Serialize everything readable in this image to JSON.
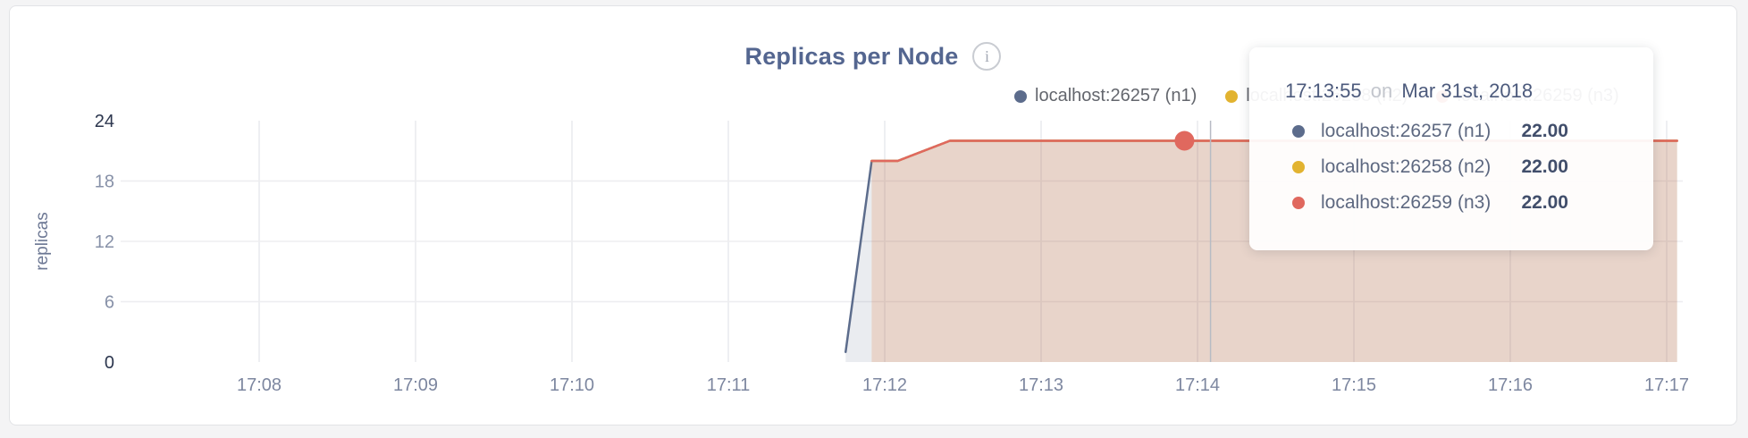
{
  "header": {
    "title": "Replicas per Node",
    "info_glyph": "i"
  },
  "legend": {
    "position": "top-right",
    "items": [
      {
        "label": "localhost:26257 (n1)",
        "color": "#5c6c8c"
      },
      {
        "label": "localhost:26258 (n2)",
        "color": "#e2b330"
      },
      {
        "label": "localhost:26259 (n3)",
        "color": "#e0685e"
      }
    ]
  },
  "chart_data": {
    "type": "area",
    "title": "Replicas per Node",
    "xlabel": "",
    "ylabel": "replicas",
    "ylim": [
      0,
      24
    ],
    "y_ticks": [
      0,
      6,
      12,
      18,
      24
    ],
    "x_ticks": [
      "17:08",
      "17:09",
      "17:10",
      "17:11",
      "17:12",
      "17:13",
      "17:14",
      "17:15",
      "17:16",
      "17:17"
    ],
    "grid": true,
    "legend_position": "top-right",
    "series": [
      {
        "name": "localhost:26257 (n1)",
        "color": "#5c6c8c",
        "fill": "rgba(92,108,140,0.13)",
        "points": [
          [
            "17:11:45",
            1
          ],
          [
            "17:11:55",
            20
          ],
          [
            "17:12:05",
            20
          ],
          [
            "17:12:25",
            22
          ],
          [
            "17:17:04",
            22
          ]
        ]
      },
      {
        "name": "localhost:26258 (n2)",
        "color": "#e2b330",
        "fill": "rgba(226,179,48,0.10)",
        "points": [
          [
            "17:11:55",
            20
          ],
          [
            "17:12:05",
            20
          ],
          [
            "17:12:25",
            22
          ],
          [
            "17:17:04",
            22
          ]
        ]
      },
      {
        "name": "localhost:26259 (n3)",
        "color": "#e0685e",
        "fill": "rgba(224,104,94,0.14)",
        "points": [
          [
            "17:11:55",
            20
          ],
          [
            "17:12:05",
            20
          ],
          [
            "17:12:25",
            22
          ],
          [
            "17:17:04",
            22
          ]
        ]
      }
    ],
    "hover": {
      "time": "17:13:55",
      "crosshair_time": "17:14:05",
      "dot_series": "localhost:26259 (n3)",
      "dot_value": 22,
      "dot_color": "#e0685e"
    }
  },
  "tooltip": {
    "time": "17:13:55",
    "conjunction": "on",
    "date": "Mar 31st, 2018",
    "rows": [
      {
        "name": "localhost:26257 (n1)",
        "value": "22.00",
        "color": "#5c6c8c"
      },
      {
        "name": "localhost:26258 (n2)",
        "value": "22.00",
        "color": "#e2b330"
      },
      {
        "name": "localhost:26259 (n3)",
        "value": "22.00",
        "color": "#e0685e"
      }
    ]
  }
}
